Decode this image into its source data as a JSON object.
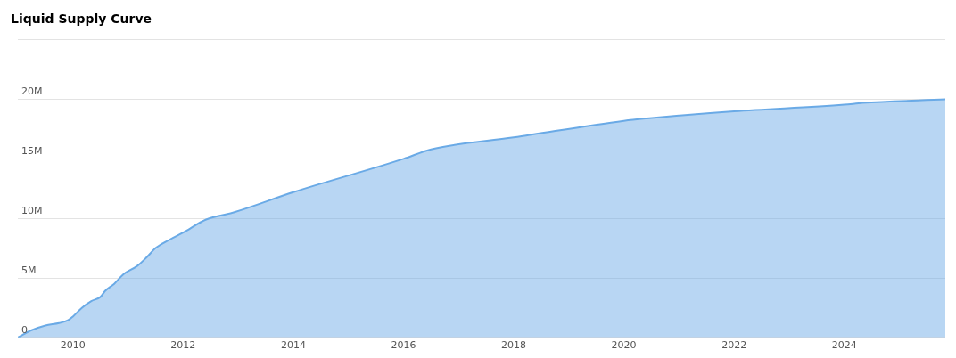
{
  "chart_data": {
    "type": "area",
    "title": "Liquid Supply Curve",
    "x": [
      "2009-01",
      "2009-04",
      "2009-07",
      "2009-10",
      "2009-12",
      "2010-01",
      "2010-03",
      "2010-05",
      "2010-07",
      "2010-08",
      "2010-10",
      "2010-12",
      "2011-03",
      "2011-05",
      "2011-07",
      "2011-10",
      "2012-01",
      "2012-06",
      "2012-12",
      "2014-01",
      "2016-01",
      "2016-07",
      "2018-01",
      "2020-01",
      "2020-06",
      "2022-01",
      "2024-01",
      "2024-05",
      "2025-11"
    ],
    "series": [
      {
        "color": "#6aaae6",
        "values": [
          0,
          600000,
          1000000,
          1200000,
          1450000,
          1750000,
          2500000,
          3050000,
          3400000,
          3900000,
          4500000,
          5300000,
          6000000,
          6700000,
          7500000,
          8200000,
          8800000,
          9900000,
          10500000,
          12200000,
          15000000,
          15800000,
          16800000,
          18200000,
          18400000,
          19000000,
          19550000,
          19700000,
          20000000
        ]
      }
    ],
    "xlim": [
      "2009-01",
      "2025-11"
    ],
    "xticks": [
      "2010",
      "2012",
      "2014",
      "2016",
      "2018",
      "2020",
      "2022",
      "2024"
    ],
    "ylim": [
      0,
      25000000
    ],
    "yticks": [
      {
        "value": 0,
        "label": "0"
      },
      {
        "value": 5000000,
        "label": "5M"
      },
      {
        "value": 10000000,
        "label": "10M"
      },
      {
        "value": 15000000,
        "label": "15M"
      },
      {
        "value": 20000000,
        "label": "20M"
      },
      {
        "value": 25000000,
        "label": null
      }
    ],
    "grid": "y",
    "legend": false
  }
}
